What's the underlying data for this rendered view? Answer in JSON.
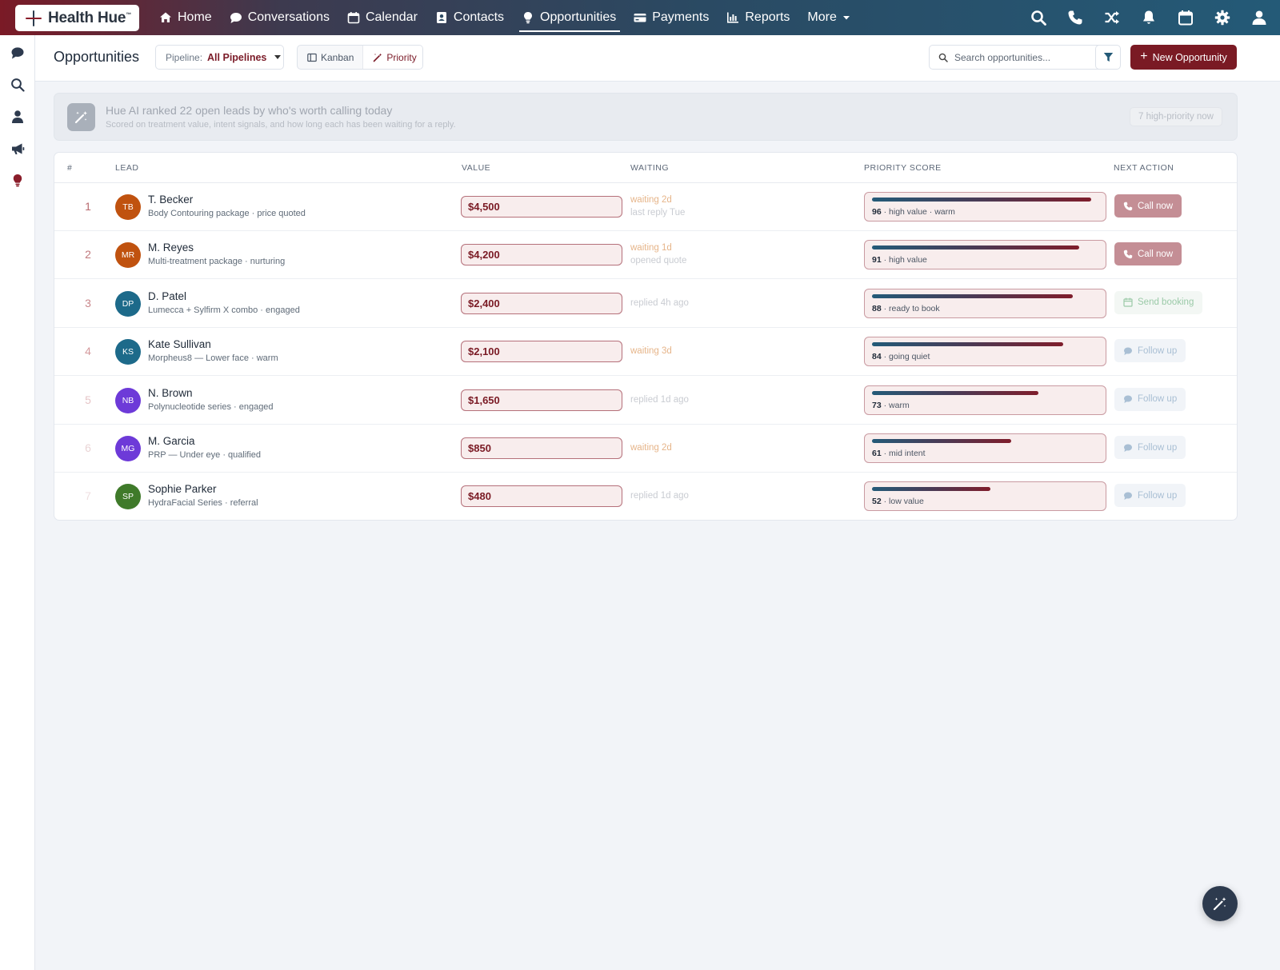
{
  "app": {
    "brand": "Health Hue",
    "brand_tm": "™"
  },
  "nav": {
    "items": [
      {
        "label": "Home",
        "icon": "home-icon"
      },
      {
        "label": "Conversations",
        "icon": "chat-icon"
      },
      {
        "label": "Calendar",
        "icon": "calendar-icon"
      },
      {
        "label": "Contacts",
        "icon": "contact-card-icon"
      },
      {
        "label": "Opportunities",
        "icon": "lightbulb-icon",
        "active": true
      },
      {
        "label": "Payments",
        "icon": "credit-card-icon"
      },
      {
        "label": "Reports",
        "icon": "bar-chart-icon"
      }
    ],
    "more_label": "More",
    "right_icons": [
      "search-icon",
      "phone-icon",
      "shuffle-icon",
      "bell-icon",
      "calendar-icon",
      "gear-icon",
      "user-icon"
    ]
  },
  "rail": {
    "icons": [
      "chat-icon",
      "search-icon",
      "user-icon",
      "megaphone-icon",
      "lightbulb-icon"
    ]
  },
  "header": {
    "title": "Opportunities",
    "pipeline_label": "Pipeline:",
    "pipeline_value": "All Pipelines",
    "view_kanban": "Kanban",
    "view_priority": "Priority",
    "search_placeholder": "Search opportunities...",
    "new_button": "New Opportunity",
    "new_button_plus": "+"
  },
  "banner": {
    "title": "Hue AI ranked 22 open leads by who's worth calling today",
    "subtitle": "Scored on treatment value, intent signals, and how long each has been waiting for a reply.",
    "pill": "7 high-priority now"
  },
  "table": {
    "columns": [
      "#",
      "LEAD",
      "VALUE",
      "WAITING",
      "PRIORITY SCORE",
      "NEXT ACTION"
    ],
    "rows": [
      {
        "rank": "1",
        "initials": "TB",
        "name": "T. Becker",
        "sub": "Body Contouring package · price quoted",
        "value": "$4,500",
        "wait1": "waiting 2d",
        "wait2": "last reply Tue",
        "score": "96",
        "score_label": " · high value · warm",
        "score_fraction": 0.96,
        "action": "Call now",
        "action_type": "call"
      },
      {
        "rank": "2",
        "initials": "MR",
        "name": "M. Reyes",
        "sub": "Multi-treatment package · nurturing",
        "value": "$4,200",
        "wait1": "waiting 1d",
        "wait2": "opened quote",
        "score": "91",
        "score_label": " · high value",
        "score_fraction": 0.91,
        "action": "Call now",
        "action_type": "call"
      },
      {
        "rank": "3",
        "initials": "DP",
        "name": "D. Patel",
        "sub": "Lumecca + Sylfirm X combo · engaged",
        "value": "$2,400",
        "wait1": "replied 4h ago",
        "wait2": "",
        "score": "88",
        "score_label": " · ready to book",
        "score_fraction": 0.88,
        "action": "Send booking",
        "action_type": "book"
      },
      {
        "rank": "4",
        "initials": "KS",
        "name": "Kate Sullivan",
        "sub": "Morpheus8 — Lower face · warm",
        "value": "$2,100",
        "wait1": "waiting 3d",
        "wait2": "",
        "score": "84",
        "score_label": " · going quiet",
        "score_fraction": 0.84,
        "action": "Follow up",
        "action_type": "follow"
      },
      {
        "rank": "5",
        "initials": "NB",
        "name": "N. Brown",
        "sub": "Polynucleotide series · engaged",
        "value": "$1,650",
        "wait1": "replied 1d ago",
        "wait2": "",
        "score": "73",
        "score_label": " · warm",
        "score_fraction": 0.73,
        "action": "Follow up",
        "action_type": "follow"
      },
      {
        "rank": "6",
        "initials": "MG",
        "name": "M. Garcia",
        "sub": "PRP — Under eye · qualified",
        "value": "$850",
        "wait1": "waiting 2d",
        "wait2": "",
        "score": "61",
        "score_label": " · mid intent",
        "score_fraction": 0.61,
        "action": "Follow up",
        "action_type": "follow"
      },
      {
        "rank": "7",
        "initials": "SP",
        "name": "Sophie Parker",
        "sub": "HydraFacial Series · referral",
        "value": "$480",
        "wait1": "replied 1d ago",
        "wait2": "",
        "score": "52",
        "score_label": " · low value",
        "score_fraction": 0.52,
        "action": "Follow up",
        "action_type": "follow"
      }
    ]
  },
  "colors": {
    "brand": "#7a1a24",
    "rank_colors": [
      "#b86a6f",
      "#c0787c",
      "#c9878b",
      "#d4999c",
      "#e6c5c7",
      "#ead4d5",
      "#efdfe0"
    ],
    "avatar_colors": [
      "#c0520f",
      "#c0520f",
      "#1d6a8a",
      "#1d6a8a",
      "#6d3ad8",
      "#6d3ad8",
      "#3f7a2a"
    ],
    "waiting_warm": "#e6b58a",
    "waiting_cool": "#c9ccd2"
  }
}
